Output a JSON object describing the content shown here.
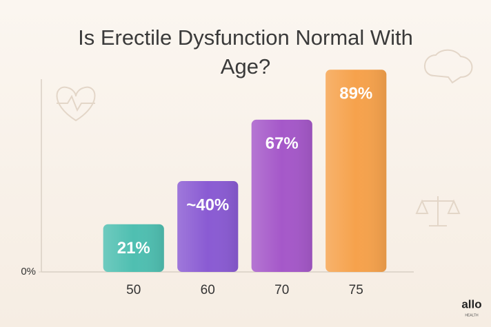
{
  "chart_data": {
    "type": "bar",
    "title": "Is Erectile Dysfunction Normal With Age?",
    "categories": [
      "50",
      "60",
      "70",
      "75"
    ],
    "values": [
      21,
      40,
      67,
      89
    ],
    "value_labels": [
      "21%",
      "~40%",
      "67%",
      "89%"
    ],
    "colors": [
      "#4fbfb1",
      "#8a5bd3",
      "#a558c9",
      "#f6a24c"
    ],
    "ylim": [
      0,
      100
    ],
    "yticks": [
      {
        "value": 0,
        "label": "0%"
      }
    ],
    "grid": false
  },
  "logo": {
    "text": "allo",
    "subtext": "HEALTH"
  }
}
